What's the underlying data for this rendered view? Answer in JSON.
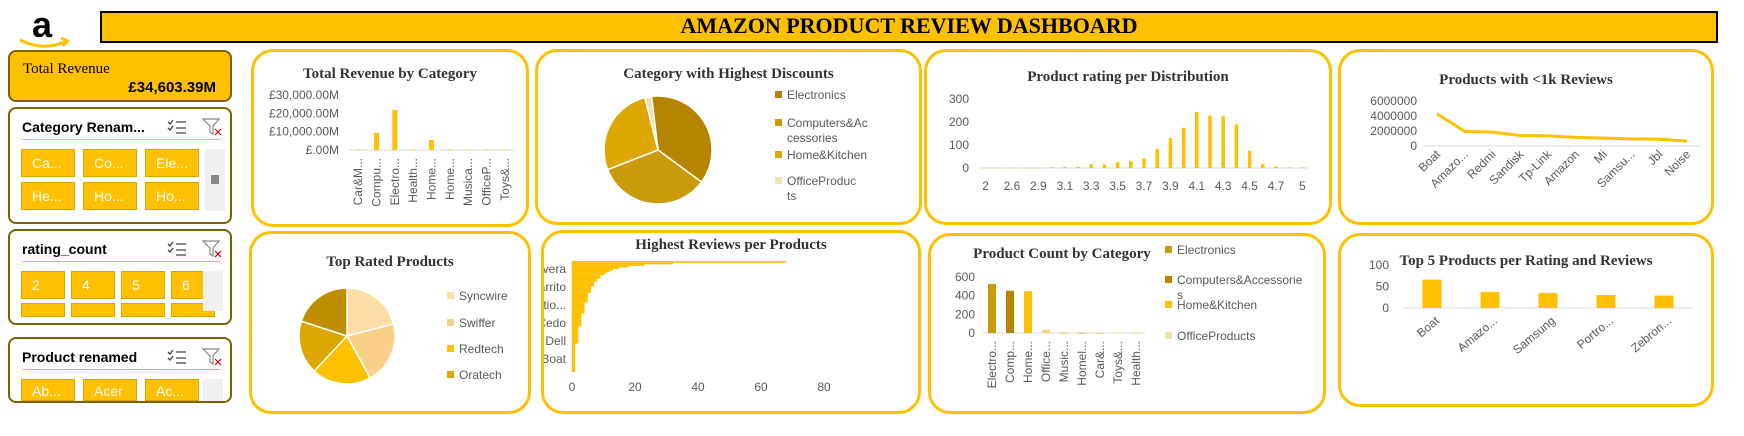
{
  "header": {
    "title": "AMAZON PRODUCT REVIEW DASHBOARD",
    "logo_letter": "a",
    "logo_icon": "amazon-logo"
  },
  "kpi": {
    "label": "Total Revenue",
    "value": "£34,603.39M"
  },
  "slicers": [
    {
      "title": "Category Renam...",
      "items": [
        "Ca...",
        "Co...",
        "Ele...",
        "He...",
        "Ho...",
        "Ho..."
      ]
    },
    {
      "title": "rating_count",
      "items": [
        "2",
        "4",
        "5",
        "6"
      ]
    },
    {
      "title": "Product renamed",
      "items": [
        "Ab...",
        "Acer",
        "Ac..."
      ]
    }
  ],
  "colors": {
    "accent": "#FFC000",
    "dark_gold": "#BF8F00",
    "border_dark": "#7F6000"
  },
  "chart_data": [
    {
      "id": "revenue",
      "type": "bar",
      "title": "Total Revenue by Category",
      "categories": [
        "Car&M...",
        "Compu...",
        "Electro...",
        "Health...",
        "Home...",
        "Home...",
        "Musica...",
        "OfficeP...",
        "Toys&..."
      ],
      "values": [
        0.3,
        9.4,
        21.8,
        0.3,
        5.4,
        0.3,
        0.2,
        0.3,
        0.2
      ],
      "ytick_labels": [
        "£30,000.00M",
        "£20,000.00M",
        "£10,000.00M",
        "£.00M"
      ],
      "ylim": [
        0,
        30
      ]
    },
    {
      "id": "discounts",
      "type": "pie",
      "title": "Category with Highest Discounts",
      "labels": [
        "Electronics",
        "Computers&Accessories",
        "Home&Kitchen",
        "OfficeProducts"
      ],
      "values": [
        37,
        34,
        27,
        2
      ],
      "colors": [
        "#B58500",
        "#C99A0A",
        "#DDA600",
        "#F2E2B2"
      ]
    },
    {
      "id": "rating_dist",
      "type": "bar",
      "title": "Product rating per Distribution",
      "x": [
        "2",
        "2.3",
        "2.6",
        "2.8",
        "2.9",
        "3",
        "3.1",
        "3.2",
        "3.3",
        "3.4",
        "3.5",
        "3.6",
        "3.7",
        "3.8",
        "3.9",
        "4",
        "4.1",
        "4.2",
        "4.3",
        "4.4",
        "4.5",
        "4.6",
        "4.7",
        "4.8",
        "5"
      ],
      "xtick_labels": [
        "2",
        "2.6",
        "2.9",
        "3.1",
        "3.3",
        "3.5",
        "3.7",
        "3.9",
        "4.1",
        "4.3",
        "4.5",
        "4.7",
        "5"
      ],
      "values": [
        1,
        1,
        1,
        1,
        1,
        4,
        4,
        5,
        16,
        15,
        26,
        30,
        42,
        83,
        130,
        175,
        244,
        228,
        225,
        190,
        75,
        17,
        6,
        3,
        3
      ],
      "yticks": [
        0,
        100,
        200,
        300
      ],
      "ylim": [
        0,
        300
      ]
    },
    {
      "id": "under1k",
      "type": "line",
      "title": "Products with <1k Reviews",
      "categories": [
        "Boat",
        "Amazo...",
        "Redmi",
        "Sandisk",
        "Tp-Link",
        "Amazon",
        "Mi",
        "Samsu...",
        "Jbl",
        "Noise"
      ],
      "values": [
        4300000,
        1950000,
        1850000,
        1400000,
        1350000,
        1150000,
        1050000,
        950000,
        900000,
        650000
      ],
      "yticks": [
        0,
        2000000,
        4000000,
        6000000
      ],
      "ytick_labels": [
        "0",
        "2000000",
        "4000000",
        "6000000"
      ],
      "ylim": [
        0,
        6000000
      ]
    },
    {
      "id": "top_rated",
      "type": "pie",
      "title": "Top Rated Products",
      "labels": [
        "Syncwire",
        "Swiffer",
        "Redtech",
        "Oratech"
      ],
      "values": [
        25,
        25,
        25,
        25
      ],
      "colors": [
        "#FDDCA6",
        "#FAD089",
        "#FFC000",
        "#DDA600",
        "#BF8F00"
      ]
    },
    {
      "id": "reviews_products",
      "type": "bar",
      "title": "Highest Reviews per Products",
      "visible_labels": [
        "Inovera",
        "Larrito",
        "Multifunctio...",
        "Cedo",
        "Dell",
        "Boat"
      ],
      "xticks": [
        0,
        20,
        40,
        60,
        80
      ],
      "xlim": [
        0,
        80
      ],
      "values": [
        68,
        32,
        23,
        18,
        15,
        13,
        12,
        11,
        10,
        9,
        9,
        8,
        8,
        7,
        7,
        7,
        6,
        6,
        6,
        6,
        5,
        5,
        5,
        5,
        5,
        5,
        4,
        4,
        4,
        4,
        4,
        4,
        4,
        3,
        3,
        3,
        3,
        3,
        3,
        3,
        3,
        2,
        2,
        2,
        2,
        2,
        2,
        2,
        2,
        2,
        2,
        2,
        1,
        1,
        1,
        1,
        1,
        1,
        1,
        1,
        1,
        1,
        1,
        1,
        1,
        1,
        1,
        1,
        1,
        1
      ]
    },
    {
      "id": "count_category",
      "type": "bar",
      "title": "Product Count by Category",
      "categories": [
        "Electro...",
        "Comp...",
        "Home...",
        "Office...",
        "Music...",
        "Homel...",
        "Car&...",
        "Toys&...",
        "Health..."
      ],
      "values": [
        526,
        453,
        448,
        31,
        2,
        2,
        1,
        1,
        1
      ],
      "bar_colors": [
        "#C99A0A",
        "#B58500",
        "#FFC000",
        "#F2D27A",
        "#DDA600",
        "#BF8F00",
        "#DDA600",
        "#F2D27A",
        "#FFC000"
      ],
      "legend": [
        "Electronics",
        "Computers&Accessories",
        "Home&Kitchen",
        "OfficeProducts"
      ],
      "legend_colors": [
        "#C99A0A",
        "#B58500",
        "#FFC000",
        "#F2E2B2"
      ],
      "yticks": [
        0,
        200,
        400,
        600
      ],
      "ylim": [
        0,
        600
      ]
    },
    {
      "id": "top5",
      "type": "bar",
      "title": "Top 5 Products per Rating and Reviews",
      "categories": [
        "Boat",
        "Amazo...",
        "Samsung",
        "Portro...",
        "Zebron..."
      ],
      "values": [
        66,
        37,
        35,
        30,
        29
      ],
      "yticks": [
        0,
        50,
        100
      ],
      "ylim": [
        0,
        100
      ]
    }
  ]
}
